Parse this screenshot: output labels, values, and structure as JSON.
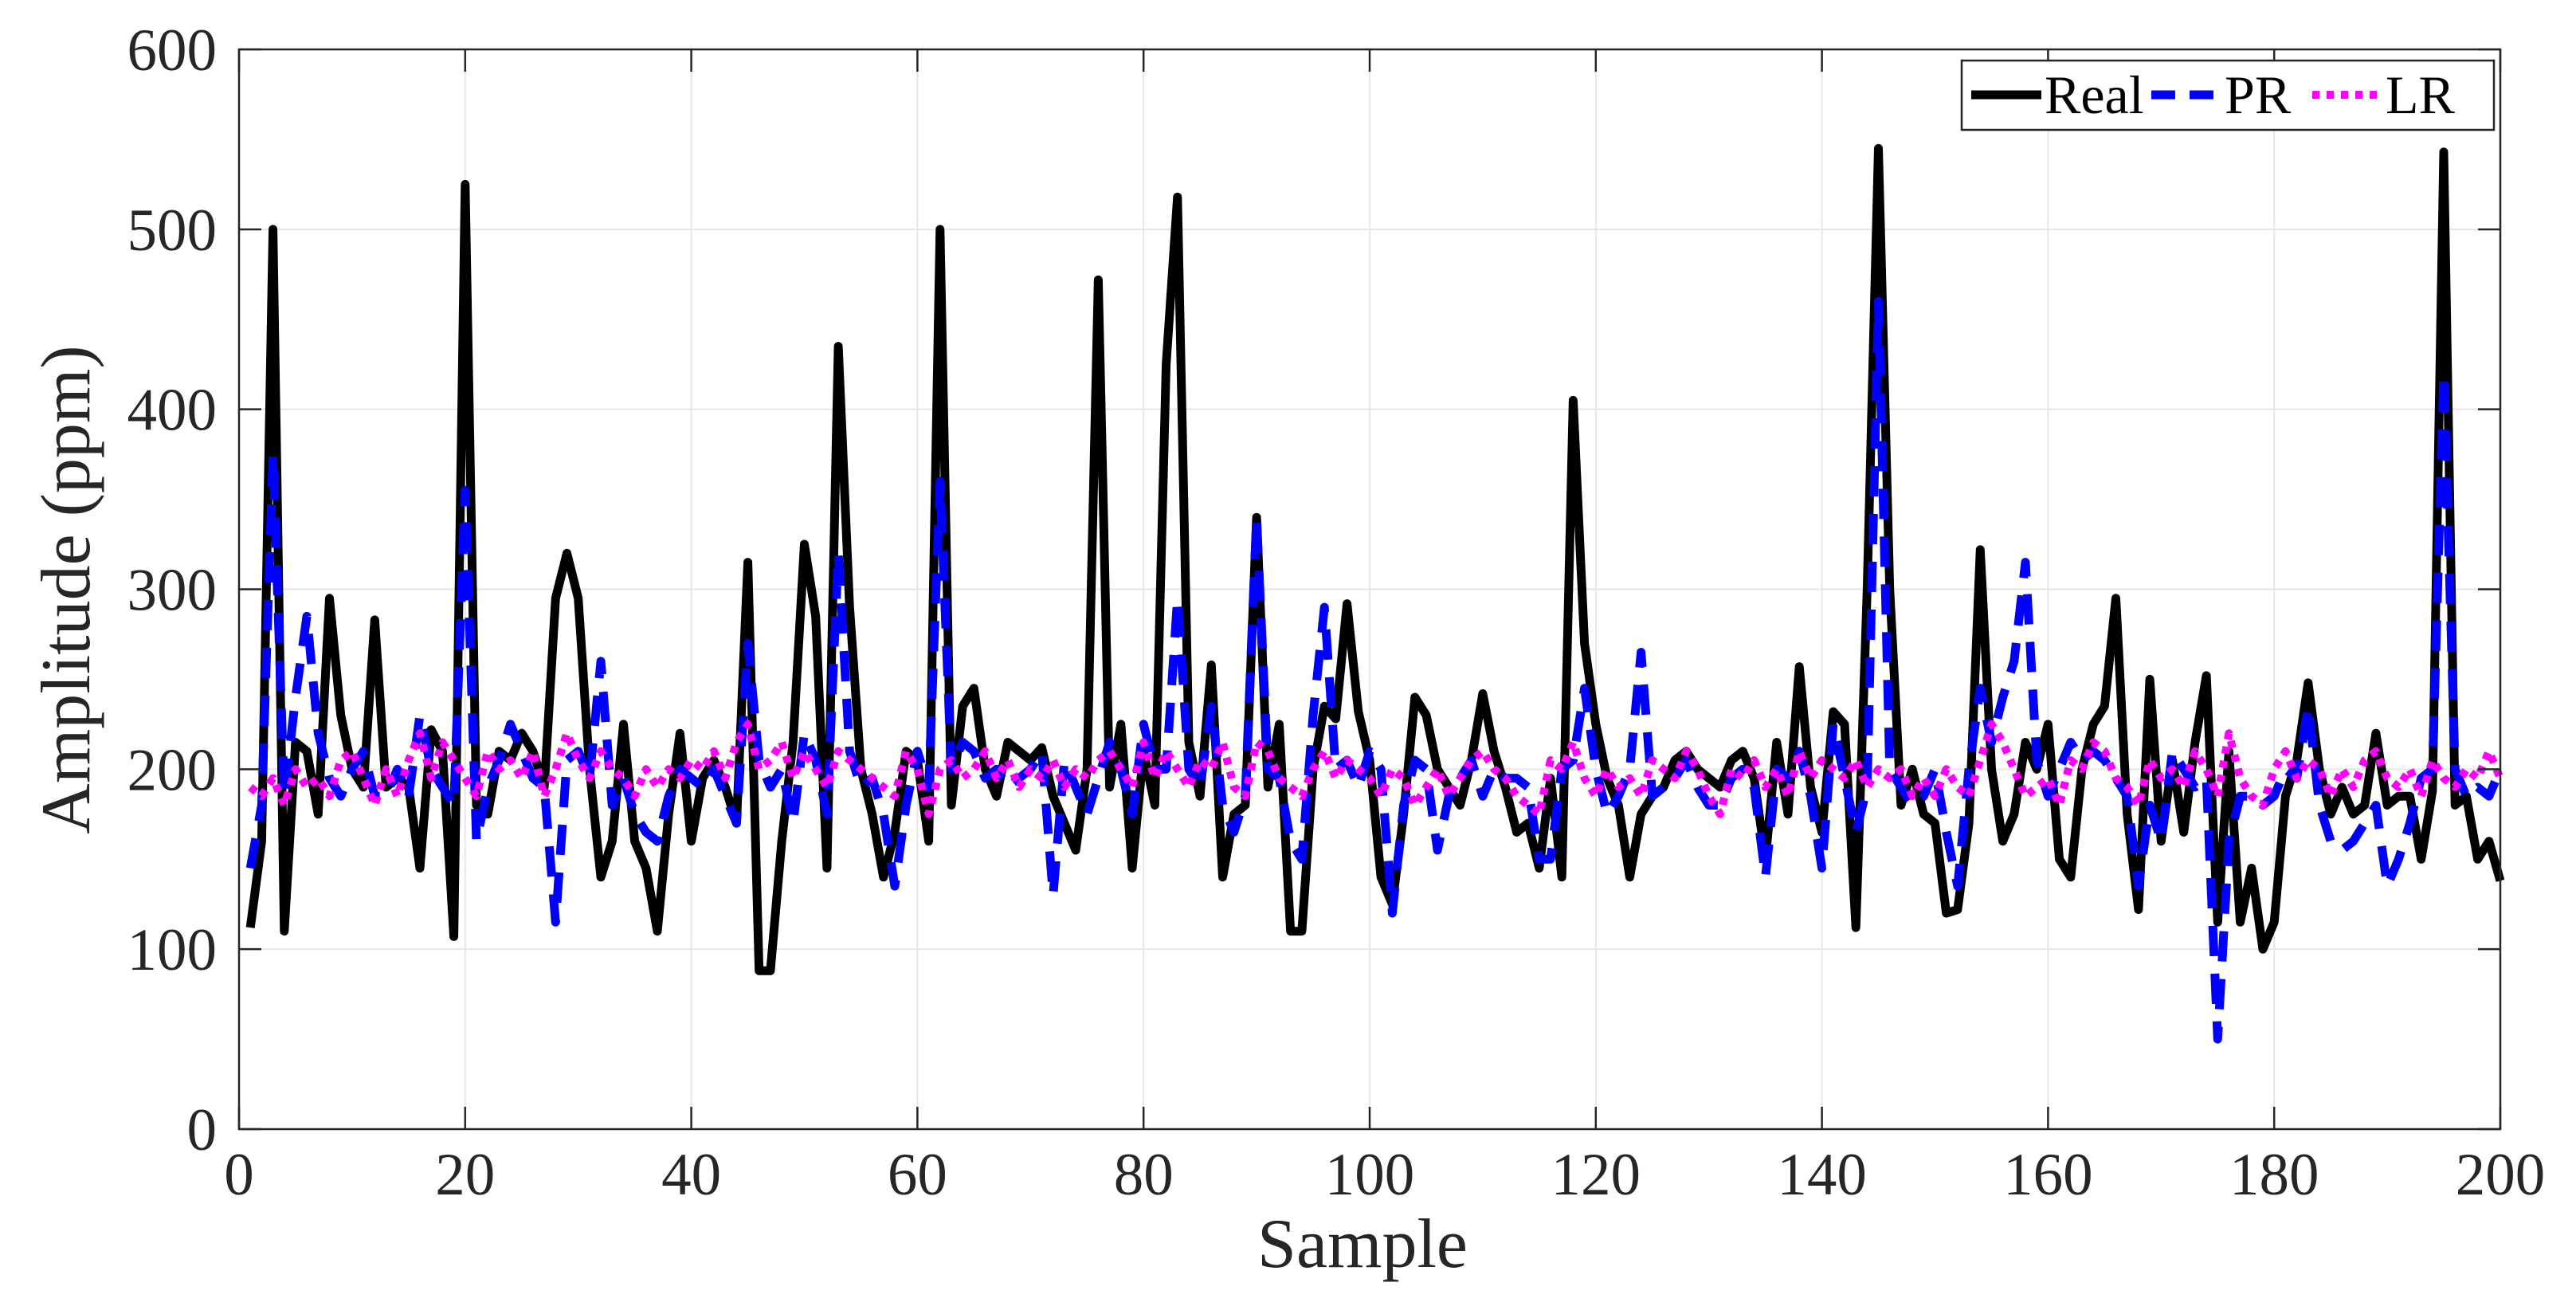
{
  "chart_data": {
    "type": "line",
    "xlabel": "Sample",
    "ylabel": "Amplitude  (ppm)",
    "xlim": [
      0,
      200
    ],
    "ylim": [
      0,
      600
    ],
    "xticks": [
      0,
      20,
      40,
      60,
      80,
      100,
      120,
      140,
      160,
      180,
      200
    ],
    "yticks": [
      0,
      100,
      200,
      300,
      400,
      500,
      600
    ],
    "grid": true,
    "legend": {
      "position": "top-right",
      "orientation": "horizontal"
    },
    "series": [
      {
        "name": "Real",
        "color": "#000000",
        "style": "solid",
        "x": [
          1,
          2,
          3,
          4,
          5,
          6,
          7,
          8,
          9,
          10,
          11,
          12,
          13,
          14,
          15,
          16,
          17,
          18,
          19,
          20,
          21,
          22,
          23,
          24,
          25,
          26,
          27,
          28,
          29,
          30,
          31,
          32,
          33,
          34,
          35,
          36,
          37,
          38,
          39,
          40,
          41,
          42,
          43,
          44,
          45,
          46,
          47,
          48,
          49,
          50,
          51,
          52,
          53,
          54,
          55,
          56,
          57,
          58,
          59,
          60,
          61,
          62,
          63,
          64,
          65,
          66,
          67,
          68,
          69,
          70,
          71,
          72,
          73,
          74,
          75,
          76,
          77,
          78,
          79,
          80,
          81,
          82,
          83,
          84,
          85,
          86,
          87,
          88,
          89,
          90,
          91,
          92,
          93,
          94,
          95,
          96,
          97,
          98,
          99,
          100,
          101,
          102,
          103,
          104,
          105,
          106,
          107,
          108,
          109,
          110,
          111,
          112,
          113,
          114,
          115,
          116,
          117,
          118,
          119,
          120,
          121,
          122,
          123,
          124,
          125,
          126,
          127,
          128,
          129,
          130,
          131,
          132,
          133,
          134,
          135,
          136,
          137,
          138,
          139,
          140,
          141,
          142,
          143,
          144,
          145,
          146,
          147,
          148,
          149,
          150,
          151,
          152,
          153,
          154,
          155,
          156,
          157,
          158,
          159,
          160,
          161,
          162,
          163,
          164,
          165,
          166,
          167,
          168,
          169,
          170,
          171,
          172,
          173,
          174,
          175,
          176,
          177,
          178,
          179,
          180,
          181,
          182,
          183,
          184,
          185,
          186,
          187,
          188,
          189,
          190,
          191,
          192,
          193,
          194,
          195,
          196,
          197,
          198,
          199,
          200
        ],
        "values": [
          112,
          160,
          500,
          110,
          215,
          210,
          175,
          295,
          230,
          200,
          190,
          283,
          190,
          195,
          190,
          145,
          222,
          210,
          107,
          525,
          180,
          175,
          210,
          205,
          220,
          210,
          190,
          295,
          320,
          295,
          200,
          140,
          160,
          225,
          160,
          145,
          110,
          175,
          220,
          160,
          195,
          205,
          190,
          170,
          315,
          88,
          88,
          160,
          215,
          325,
          285,
          145,
          435,
          290,
          200,
          175,
          140,
          165,
          210,
          205,
          160,
          500,
          180,
          235,
          245,
          200,
          185,
          215,
          210,
          205,
          212,
          185,
          170,
          155,
          200,
          472,
          190,
          225,
          145,
          210,
          180,
          425,
          518,
          215,
          185,
          258,
          140,
          175,
          180,
          340,
          190,
          225,
          110,
          110,
          200,
          235,
          228,
          292,
          232,
          205,
          140,
          125,
          175,
          240,
          230,
          200,
          190,
          180,
          205,
          242,
          210,
          190,
          165,
          170,
          145,
          195,
          140,
          405,
          270,
          225,
          195,
          180,
          140,
          175,
          185,
          190,
          205,
          210,
          200,
          195,
          190,
          205,
          210,
          195,
          150,
          215,
          175,
          257,
          190,
          165,
          232,
          225,
          112,
          300,
          545,
          300,
          180,
          200,
          175,
          170,
          120,
          122,
          170,
          322,
          200,
          160,
          175,
          215,
          200,
          225,
          150,
          140,
          200,
          225,
          235,
          295,
          175,
          122,
          250,
          160,
          205,
          165,
          215,
          252,
          115,
          210,
          115,
          145,
          100,
          115,
          185,
          205,
          248,
          200,
          175,
          190,
          175,
          180,
          220,
          180,
          185,
          185,
          150,
          188,
          543,
          180,
          185,
          150,
          160,
          138
        ]
      },
      {
        "name": "PR",
        "color": "#0000ff",
        "style": "dashed",
        "x": [
          1,
          2,
          3,
          4,
          5,
          6,
          7,
          8,
          9,
          10,
          11,
          12,
          13,
          14,
          15,
          16,
          17,
          18,
          19,
          20,
          21,
          22,
          23,
          24,
          25,
          26,
          27,
          28,
          29,
          30,
          31,
          32,
          33,
          34,
          35,
          36,
          37,
          38,
          39,
          40,
          41,
          42,
          43,
          44,
          45,
          46,
          47,
          48,
          49,
          50,
          51,
          52,
          53,
          54,
          55,
          56,
          57,
          58,
          59,
          60,
          61,
          62,
          63,
          64,
          65,
          66,
          67,
          68,
          69,
          70,
          71,
          72,
          73,
          74,
          75,
          76,
          77,
          78,
          79,
          80,
          81,
          82,
          83,
          84,
          85,
          86,
          87,
          88,
          89,
          90,
          91,
          92,
          93,
          94,
          95,
          96,
          97,
          98,
          99,
          100,
          101,
          102,
          103,
          104,
          105,
          106,
          107,
          108,
          109,
          110,
          111,
          112,
          113,
          114,
          115,
          116,
          117,
          118,
          119,
          120,
          121,
          122,
          123,
          124,
          125,
          126,
          127,
          128,
          129,
          130,
          131,
          132,
          133,
          134,
          135,
          136,
          137,
          138,
          139,
          140,
          141,
          142,
          143,
          144,
          145,
          146,
          147,
          148,
          149,
          150,
          151,
          152,
          153,
          154,
          155,
          156,
          157,
          158,
          159,
          160,
          161,
          162,
          163,
          164,
          165,
          166,
          167,
          168,
          169,
          170,
          171,
          172,
          173,
          174,
          175,
          176,
          177,
          178,
          179,
          180,
          181,
          182,
          183,
          184,
          185,
          186,
          187,
          188,
          189,
          190,
          191,
          192,
          193,
          194,
          195,
          196,
          197,
          198,
          199,
          200
        ],
        "values": [
          145,
          180,
          375,
          185,
          240,
          285,
          220,
          195,
          185,
          200,
          210,
          185,
          185,
          200,
          185,
          230,
          200,
          190,
          180,
          355,
          160,
          190,
          205,
          225,
          210,
          195,
          190,
          115,
          205,
          210,
          195,
          260,
          180,
          195,
          175,
          165,
          160,
          185,
          200,
          195,
          190,
          200,
          185,
          170,
          270,
          205,
          190,
          200,
          170,
          220,
          205,
          175,
          320,
          210,
          190,
          195,
          175,
          135,
          180,
          210,
          190,
          360,
          200,
          215,
          210,
          195,
          200,
          190,
          195,
          200,
          210,
          130,
          205,
          190,
          175,
          195,
          215,
          200,
          175,
          225,
          200,
          200,
          295,
          200,
          190,
          235,
          180,
          165,
          185,
          340,
          200,
          195,
          160,
          150,
          230,
          290,
          200,
          205,
          190,
          210,
          200,
          120,
          180,
          205,
          200,
          155,
          185,
          195,
          205,
          185,
          200,
          195,
          195,
          190,
          150,
          150,
          200,
          205,
          245,
          200,
          175,
          185,
          200,
          265,
          185,
          190,
          195,
          205,
          190,
          180,
          180,
          195,
          200,
          190,
          140,
          200,
          195,
          210,
          185,
          145,
          225,
          195,
          165,
          190,
          460,
          200,
          190,
          180,
          185,
          200,
          165,
          135,
          200,
          245,
          215,
          240,
          260,
          315,
          205,
          185,
          200,
          215,
          205,
          210,
          205,
          195,
          185,
          135,
          180,
          160,
          210,
          200,
          190,
          195,
          50,
          160,
          185,
          185,
          180,
          185,
          200,
          195,
          235,
          180,
          160,
          155,
          160,
          170,
          180,
          135,
          150,
          170,
          195,
          200,
          420,
          200,
          185,
          190,
          185,
          200
        ]
      },
      {
        "name": "LR",
        "color": "#ff00ff",
        "style": "dotted",
        "x": [
          1,
          2,
          3,
          4,
          5,
          6,
          7,
          8,
          9,
          10,
          11,
          12,
          13,
          14,
          15,
          16,
          17,
          18,
          19,
          20,
          21,
          22,
          23,
          24,
          25,
          26,
          27,
          28,
          29,
          30,
          31,
          32,
          33,
          34,
          35,
          36,
          37,
          38,
          39,
          40,
          41,
          42,
          43,
          44,
          45,
          46,
          47,
          48,
          49,
          50,
          51,
          52,
          53,
          54,
          55,
          56,
          57,
          58,
          59,
          60,
          61,
          62,
          63,
          64,
          65,
          66,
          67,
          68,
          69,
          70,
          71,
          72,
          73,
          74,
          75,
          76,
          77,
          78,
          79,
          80,
          81,
          82,
          83,
          84,
          85,
          86,
          87,
          88,
          89,
          90,
          91,
          92,
          93,
          94,
          95,
          96,
          97,
          98,
          99,
          100,
          101,
          102,
          103,
          104,
          105,
          106,
          107,
          108,
          109,
          110,
          111,
          112,
          113,
          114,
          115,
          116,
          117,
          118,
          119,
          120,
          121,
          122,
          123,
          124,
          125,
          126,
          127,
          128,
          129,
          130,
          131,
          132,
          133,
          134,
          135,
          136,
          137,
          138,
          139,
          140,
          141,
          142,
          143,
          144,
          145,
          146,
          147,
          148,
          149,
          150,
          151,
          152,
          153,
          154,
          155,
          156,
          157,
          158,
          159,
          160,
          161,
          162,
          163,
          164,
          165,
          166,
          167,
          168,
          169,
          170,
          171,
          172,
          173,
          174,
          175,
          176,
          177,
          178,
          179,
          180,
          181,
          182,
          183,
          184,
          185,
          186,
          187,
          188,
          189,
          190,
          191,
          192,
          193,
          194,
          195,
          196,
          197,
          198,
          199,
          200
        ],
        "values": [
          190,
          185,
          195,
          180,
          200,
          190,
          195,
          185,
          205,
          210,
          195,
          180,
          200,
          185,
          205,
          220,
          195,
          215,
          205,
          195,
          185,
          210,
          200,
          205,
          195,
          210,
          185,
          200,
          220,
          205,
          195,
          210,
          200,
          195,
          185,
          200,
          190,
          200,
          195,
          205,
          200,
          210,
          195,
          215,
          225,
          200,
          205,
          215,
          195,
          210,
          200,
          190,
          210,
          205,
          200,
          195,
          190,
          185,
          210,
          200,
          175,
          200,
          205,
          195,
          200,
          210,
          195,
          205,
          190,
          200,
          195,
          205,
          190,
          200,
          195,
          205,
          210,
          200,
          190,
          215,
          195,
          210,
          200,
          190,
          205,
          200,
          215,
          190,
          185,
          215,
          210,
          195,
          190,
          185,
          200,
          210,
          195,
          205,
          200,
          195,
          185,
          200,
          195,
          180,
          190,
          200,
          185,
          195,
          205,
          210,
          200,
          195,
          185,
          180,
          175,
          205,
          200,
          215,
          195,
          185,
          200,
          190,
          195,
          185,
          205,
          200,
          195,
          210,
          200,
          185,
          175,
          200,
          195,
          205,
          190,
          200,
          185,
          210,
          195,
          205,
          200,
          195,
          205,
          190,
          200,
          195,
          200,
          185,
          195,
          185,
          200,
          190,
          185,
          205,
          225,
          215,
          200,
          185,
          190,
          195,
          180,
          205,
          200,
          215,
          210,
          195,
          190,
          180,
          205,
          195,
          200,
          190,
          210,
          200,
          185,
          220,
          195,
          185,
          180,
          200,
          210,
          195,
          205,
          200,
          185,
          200,
          190,
          205,
          210,
          195,
          190,
          200,
          185,
          205,
          195,
          190,
          200,
          195,
          210,
          195
        ]
      }
    ]
  }
}
